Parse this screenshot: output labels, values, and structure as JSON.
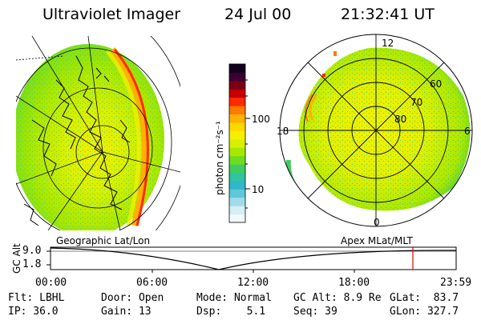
{
  "header": {
    "instrument": "Ultraviolet Imager",
    "date": "24 Jul 00",
    "time": "21:32:41 UT"
  },
  "left_panel": {
    "caption": "Geographic Lat/Lon"
  },
  "right_panel": {
    "caption": "Apex MLat/MLT",
    "mlt_labels": {
      "top": "12",
      "left": "18",
      "right": "6",
      "bottom": "0"
    },
    "lat_labels": [
      "60",
      "70",
      "80"
    ]
  },
  "colorbar": {
    "unit_label": "photon cm⁻²s⁻¹",
    "tick_100": "100",
    "tick_10": "10",
    "colors": [
      "#120020",
      "#3a0030",
      "#7a0015",
      "#c40000",
      "#ff2a00",
      "#ff7a00",
      "#ffb000",
      "#ffd800",
      "#f4f000",
      "#d8f000",
      "#a8e800",
      "#70dc20",
      "#40cc60",
      "#30c4a0",
      "#30b8c8",
      "#60c8d8",
      "#a0dce8",
      "#d6eef4",
      "#f2f8fb"
    ]
  },
  "timeline": {
    "y_label": "GC Alt",
    "y_ticks": [
      "9.0",
      "1.8"
    ],
    "x_ticks": [
      "00:00",
      "06:00",
      "12:00",
      "18:00",
      "23:59"
    ],
    "marker_color": "#e00000"
  },
  "footer": {
    "row1": {
      "flt": "Flt: LBHL",
      "door": "Door: Open",
      "mode": "Mode: Normal",
      "gcalt": "GC Alt: 8.9 Re",
      "glat": "GLat:  83.7"
    },
    "row2": {
      "ip": "IP: 36.0",
      "gain": "Gain: 13",
      "dsp": "Dsp:    5.1",
      "seq": "Seq: 39",
      "glon": "GLon: 327.7"
    }
  }
}
